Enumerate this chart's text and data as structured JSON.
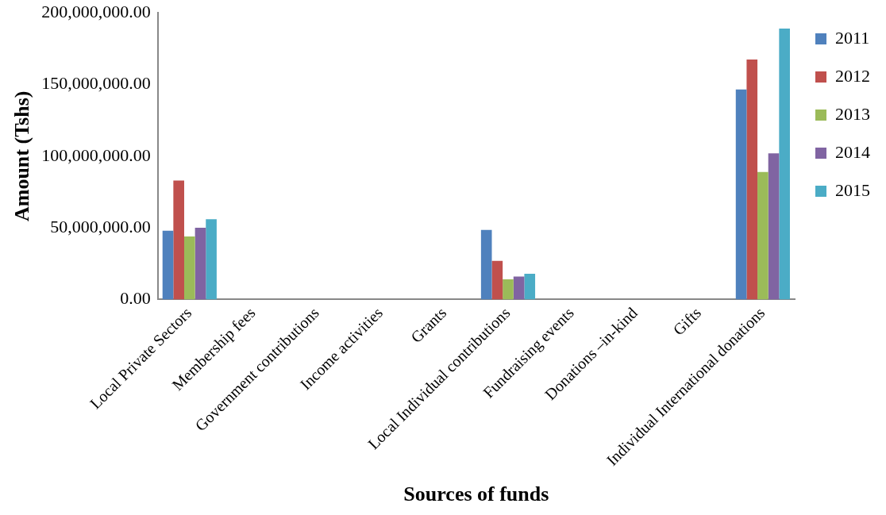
{
  "chart_data": {
    "type": "bar",
    "xlabel": "Sources of funds",
    "ylabel": "Amount (Tshs)",
    "categories": [
      "Local Private Sectors",
      "Membership fees",
      "Government contributions",
      "Income activities",
      "Grants",
      "Local Individual contributions",
      "Fundraising events",
      "Donations –in-kind",
      "Gifts",
      "Individual International donations"
    ],
    "series": [
      {
        "name": "2011",
        "color": "#4f81bd",
        "values": [
          48000000,
          0,
          0,
          0,
          0,
          48500000,
          0,
          0,
          0,
          146500000
        ]
      },
      {
        "name": "2012",
        "color": "#c0504d",
        "values": [
          83000000,
          0,
          0,
          0,
          0,
          27000000,
          0,
          0,
          0,
          167500000
        ]
      },
      {
        "name": "2013",
        "color": "#9bbb59",
        "values": [
          44000000,
          0,
          0,
          0,
          0,
          14000000,
          0,
          0,
          0,
          89000000
        ]
      },
      {
        "name": "2014",
        "color": "#8064a2",
        "values": [
          50000000,
          0,
          0,
          0,
          0,
          16000000,
          0,
          0,
          0,
          102000000
        ]
      },
      {
        "name": "2015",
        "color": "#4bacc6",
        "values": [
          56000000,
          0,
          0,
          0,
          0,
          18000000,
          0,
          0,
          0,
          189000000
        ]
      }
    ],
    "ylim": [
      0,
      200000000
    ],
    "yticks": [
      {
        "value": 0,
        "label": "0.00"
      },
      {
        "value": 50000000,
        "label": "50,000,000.00"
      },
      {
        "value": 100000000,
        "label": "100,000,000.00"
      },
      {
        "value": 150000000,
        "label": "150,000,000.00"
      },
      {
        "value": 200000000,
        "label": "200,000,000.00"
      }
    ],
    "grid": false,
    "legend": "right"
  }
}
